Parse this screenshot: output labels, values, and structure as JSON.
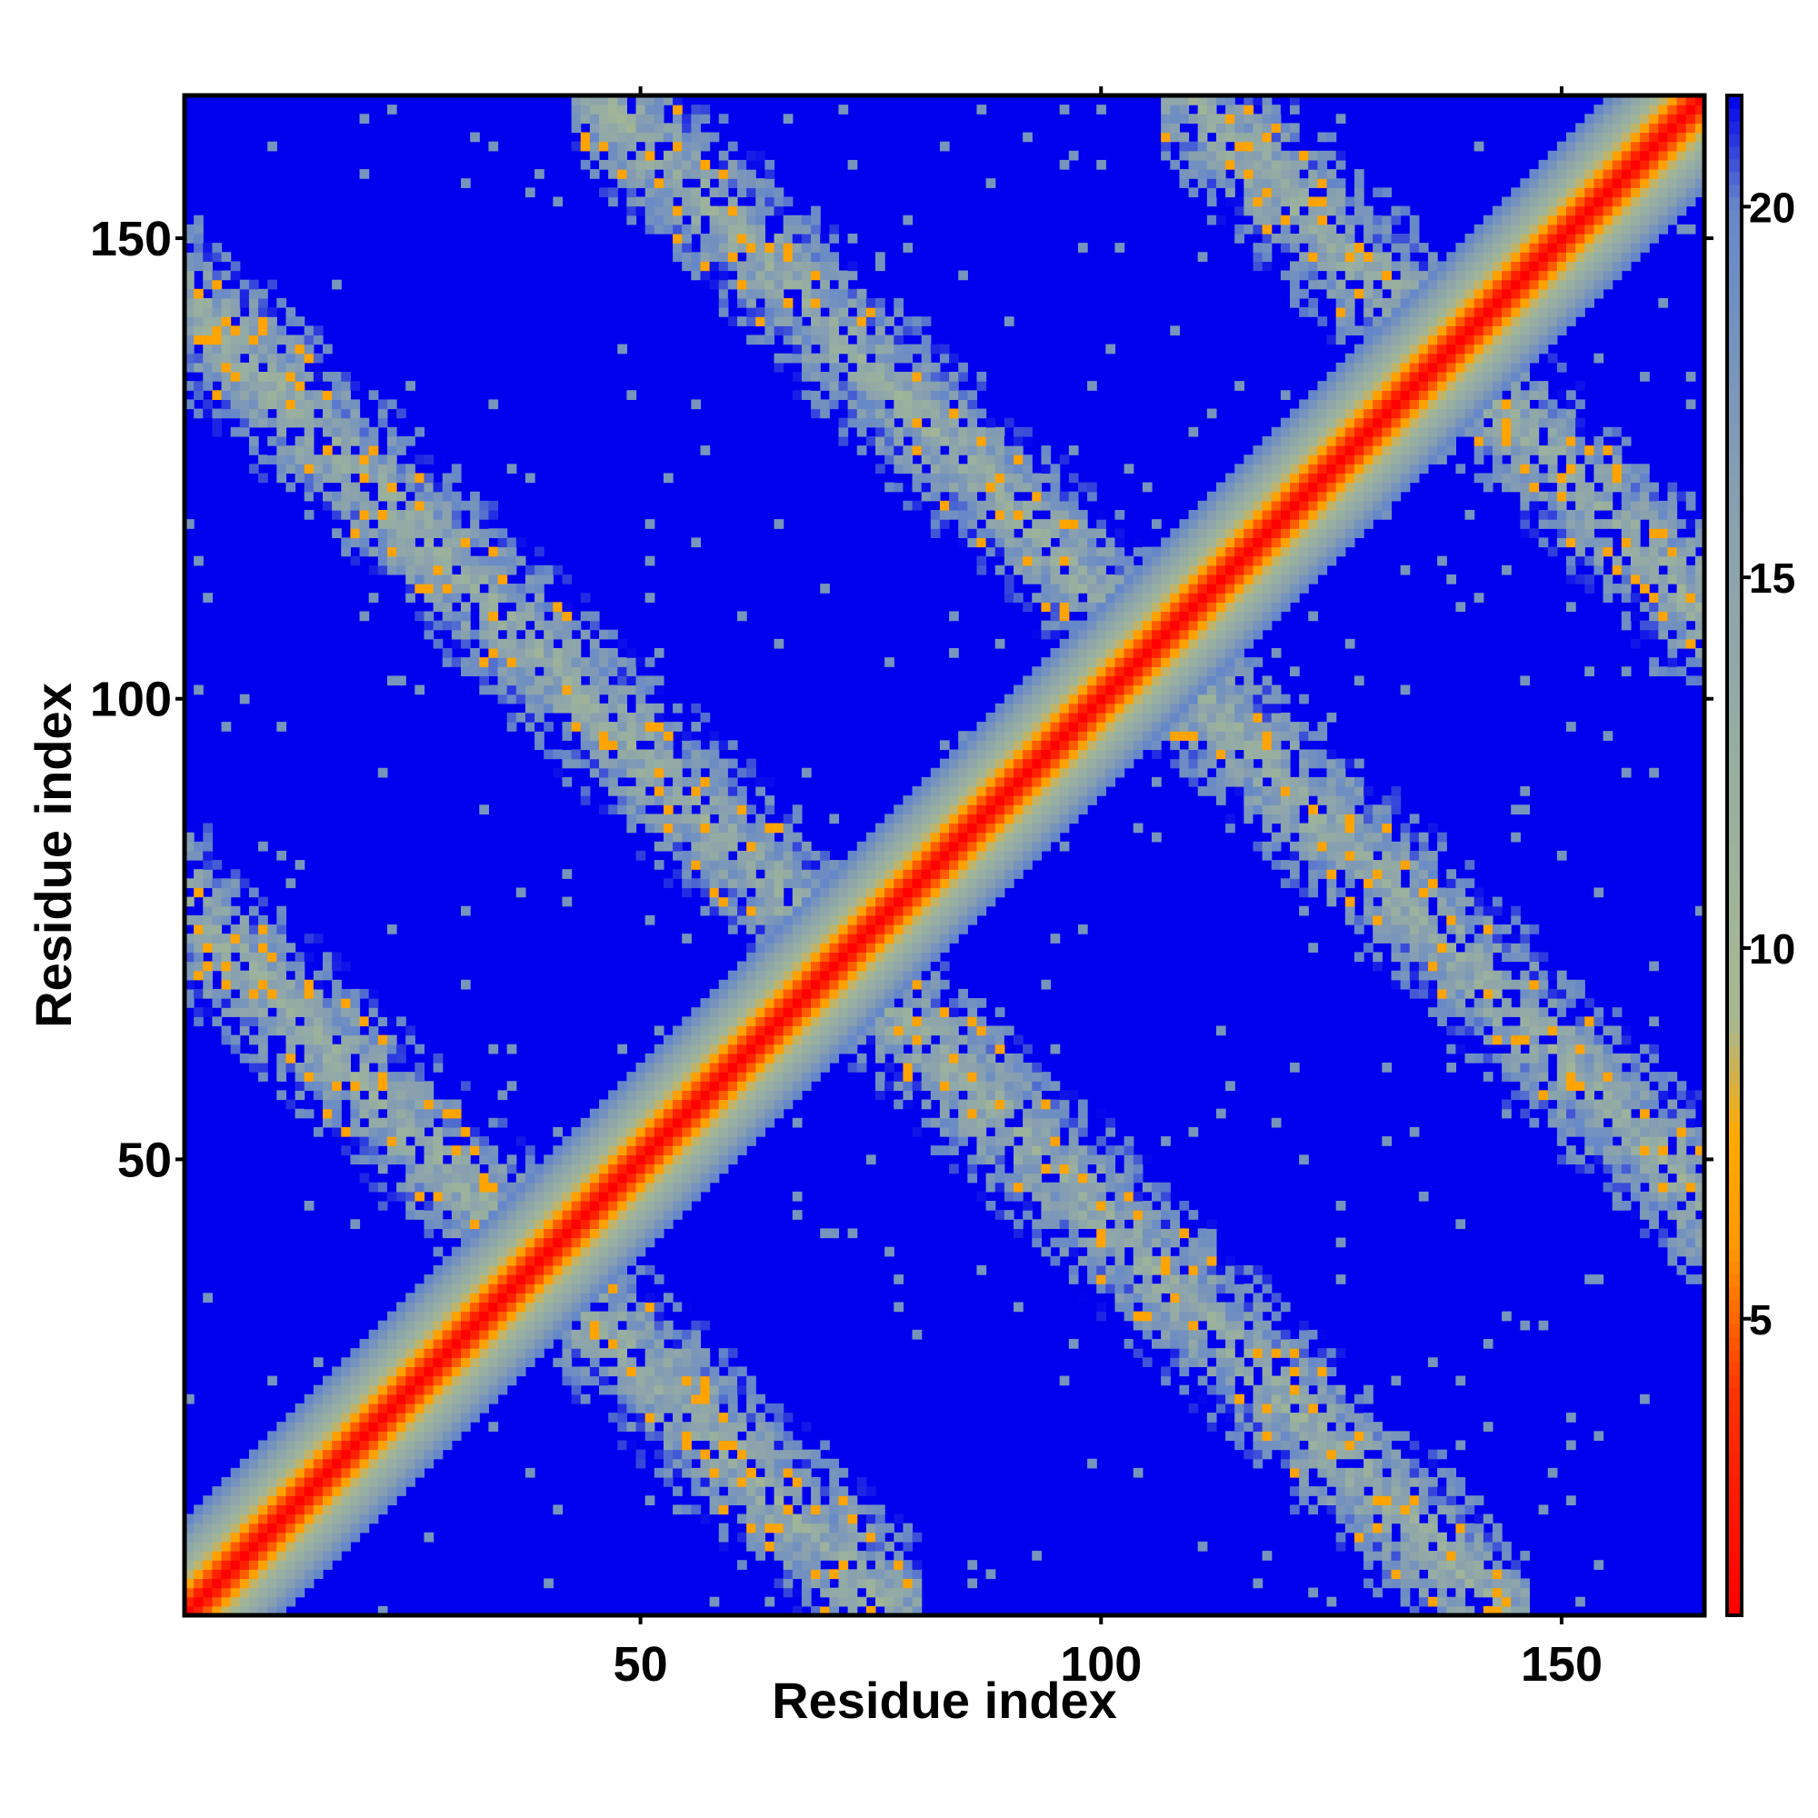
{
  "chart_data": {
    "type": "heatmap",
    "title": "",
    "xlabel": "Residue index",
    "ylabel": "Residue index",
    "n_residues": 165,
    "xlim": [
      1,
      165
    ],
    "ylim": [
      1,
      165
    ],
    "x_ticks": [
      50,
      100,
      150
    ],
    "y_ticks": [
      50,
      100,
      150
    ],
    "x_tick_labels": [
      "50",
      "100",
      "150"
    ],
    "y_tick_labels": [
      "50",
      "100",
      "150"
    ],
    "colorbar": {
      "range": [
        1,
        21.5
      ],
      "ticks": [
        5,
        10,
        15,
        20
      ],
      "tick_labels": [
        "5",
        "10",
        "15",
        "20"
      ],
      "stops": [
        {
          "value": 1,
          "color": "#ff0000"
        },
        {
          "value": 4,
          "color": "#ff3300"
        },
        {
          "value": 6,
          "color": "#ff9900"
        },
        {
          "value": 7.5,
          "color": "#ffaa00"
        },
        {
          "value": 9,
          "color": "#a8b890"
        },
        {
          "value": 12,
          "color": "#99b0a0"
        },
        {
          "value": 16,
          "color": "#88a0b0"
        },
        {
          "value": 20,
          "color": "#6688c8"
        },
        {
          "value": 21.5,
          "color": "#0000ee"
        }
      ],
      "background_color": "#0000ee"
    },
    "structure": {
      "diagonal": true,
      "antidiagonal_bands": [
        {
          "x_start": 1,
          "y_start": 77,
          "x_end": 77,
          "y_end": 1
        },
        {
          "x_start": 1,
          "y_start": 143,
          "x_end": 143,
          "y_end": 1
        },
        {
          "x_start": 46,
          "y_start": 165,
          "x_end": 165,
          "y_end": 46
        },
        {
          "x_start": 110,
          "y_start": 165,
          "x_end": 165,
          "y_end": 110
        }
      ],
      "band_half_width_residues": 8
    },
    "grid": false,
    "legend": "colorbar-right"
  }
}
